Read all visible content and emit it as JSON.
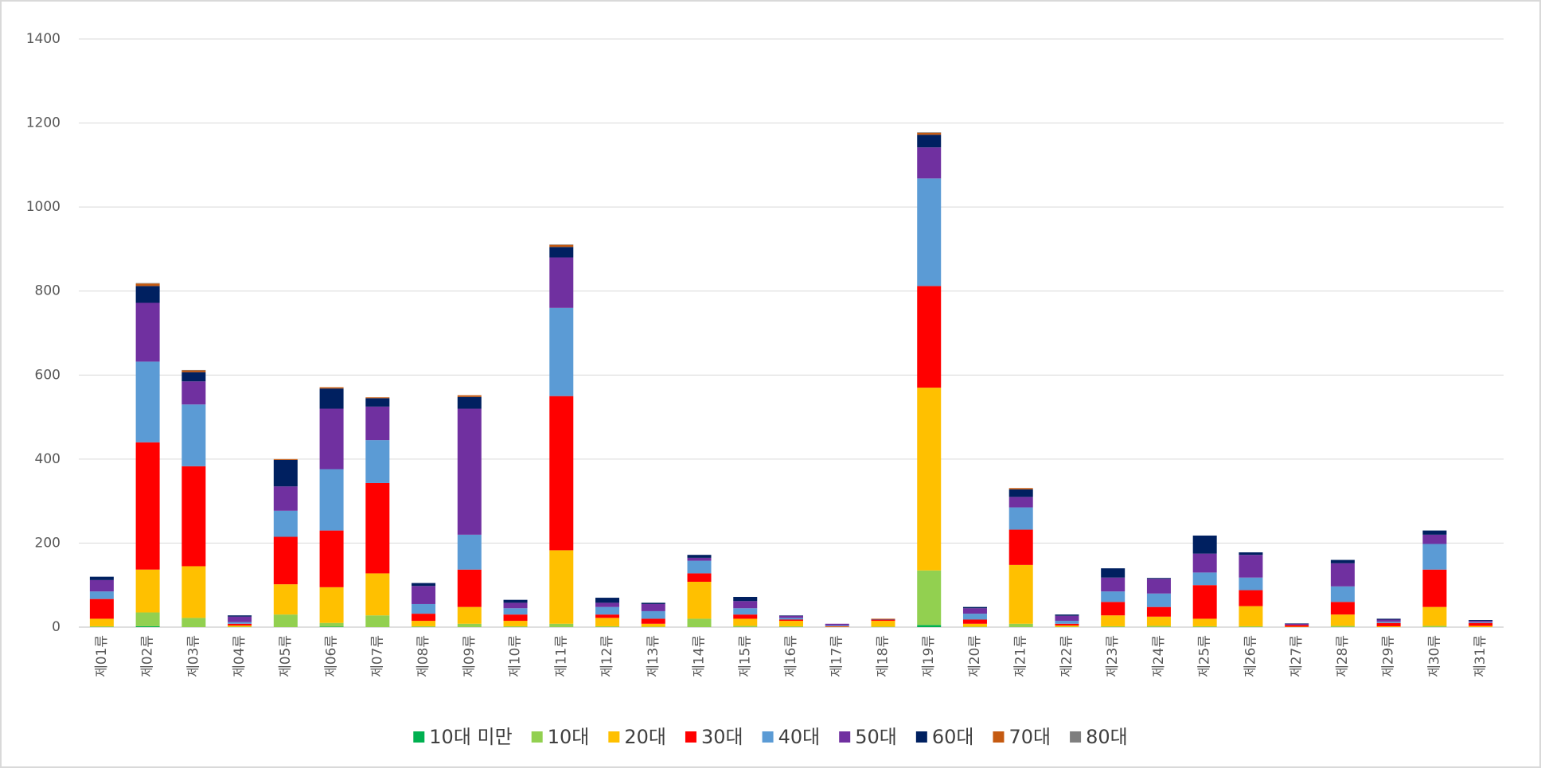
{
  "chart_data": {
    "type": "bar",
    "stacked": true,
    "categories": [
      "제01류",
      "제02류",
      "제03류",
      "제04류",
      "제05류",
      "제06류",
      "제07류",
      "제08류",
      "제09류",
      "제10류",
      "제11류",
      "제12류",
      "제13류",
      "제14류",
      "제15류",
      "제16류",
      "제17류",
      "제18류",
      "제19류",
      "제20류",
      "제21류",
      "제22류",
      "제23류",
      "제24류",
      "제25류",
      "제26류",
      "제27류",
      "제28류",
      "제29류",
      "제30류",
      "제31류"
    ],
    "series": [
      {
        "name": "10대 미만",
        "color": "#00b050",
        "values": [
          0,
          2,
          0,
          0,
          0,
          1,
          0,
          0,
          0,
          0,
          0,
          0,
          0,
          0,
          0,
          0,
          0,
          0,
          5,
          0,
          0,
          0,
          0,
          0,
          0,
          0,
          0,
          0,
          0,
          0,
          0
        ]
      },
      {
        "name": "10대",
        "color": "#92d050",
        "values": [
          2,
          33,
          22,
          1,
          30,
          9,
          28,
          2,
          8,
          2,
          8,
          2,
          1,
          20,
          3,
          2,
          0,
          1,
          130,
          1,
          8,
          1,
          2,
          3,
          2,
          2,
          0,
          3,
          0,
          3,
          0
        ]
      },
      {
        "name": "20대",
        "color": "#ffc000",
        "values": [
          18,
          102,
          123,
          3,
          72,
          85,
          100,
          13,
          40,
          13,
          175,
          20,
          7,
          88,
          17,
          13,
          1,
          14,
          435,
          7,
          140,
          3,
          26,
          22,
          18,
          48,
          1,
          27,
          2,
          45,
          3
        ]
      },
      {
        "name": "30대",
        "color": "#ff0000",
        "values": [
          47,
          303,
          238,
          4,
          113,
          135,
          215,
          17,
          89,
          15,
          367,
          8,
          12,
          20,
          10,
          3,
          1,
          2,
          242,
          10,
          84,
          4,
          32,
          23,
          80,
          38,
          4,
          30,
          8,
          89,
          7
        ]
      },
      {
        "name": "40대",
        "color": "#5b9bd5",
        "values": [
          18,
          192,
          147,
          4,
          62,
          146,
          102,
          23,
          83,
          15,
          210,
          18,
          18,
          30,
          15,
          4,
          2,
          0,
          256,
          14,
          53,
          7,
          25,
          32,
          30,
          30,
          0,
          37,
          3,
          61,
          2
        ]
      },
      {
        "name": "50대",
        "color": "#7030a0",
        "values": [
          27,
          140,
          55,
          13,
          58,
          144,
          80,
          43,
          300,
          13,
          120,
          10,
          17,
          7,
          17,
          5,
          4,
          1,
          74,
          13,
          25,
          12,
          33,
          35,
          45,
          54,
          3,
          55,
          5,
          22,
          3
        ]
      },
      {
        "name": "60대",
        "color": "#002060",
        "values": [
          8,
          40,
          22,
          3,
          63,
          48,
          20,
          7,
          28,
          7,
          25,
          12,
          3,
          7,
          10,
          1,
          0,
          0,
          30,
          3,
          18,
          3,
          22,
          2,
          43,
          6,
          1,
          8,
          2,
          10,
          2
        ]
      },
      {
        "name": "70대",
        "color": "#c55a11",
        "values": [
          0,
          6,
          4,
          0,
          2,
          3,
          2,
          0,
          4,
          0,
          5,
          0,
          0,
          0,
          0,
          0,
          0,
          2,
          5,
          0,
          3,
          0,
          0,
          0,
          0,
          0,
          0,
          0,
          0,
          0,
          0
        ]
      },
      {
        "name": "80대",
        "color": "#7f7f7f",
        "values": [
          0,
          1,
          1,
          0,
          0,
          0,
          0,
          0,
          0,
          0,
          1,
          0,
          0,
          0,
          0,
          0,
          0,
          0,
          1,
          0,
          0,
          0,
          0,
          0,
          0,
          0,
          0,
          0,
          0,
          0,
          0
        ]
      }
    ],
    "ylim": [
      0,
      1400
    ],
    "yticks": [
      0,
      200,
      400,
      600,
      800,
      1000,
      1200,
      1400
    ],
    "grid": true,
    "legend": "bottom"
  }
}
